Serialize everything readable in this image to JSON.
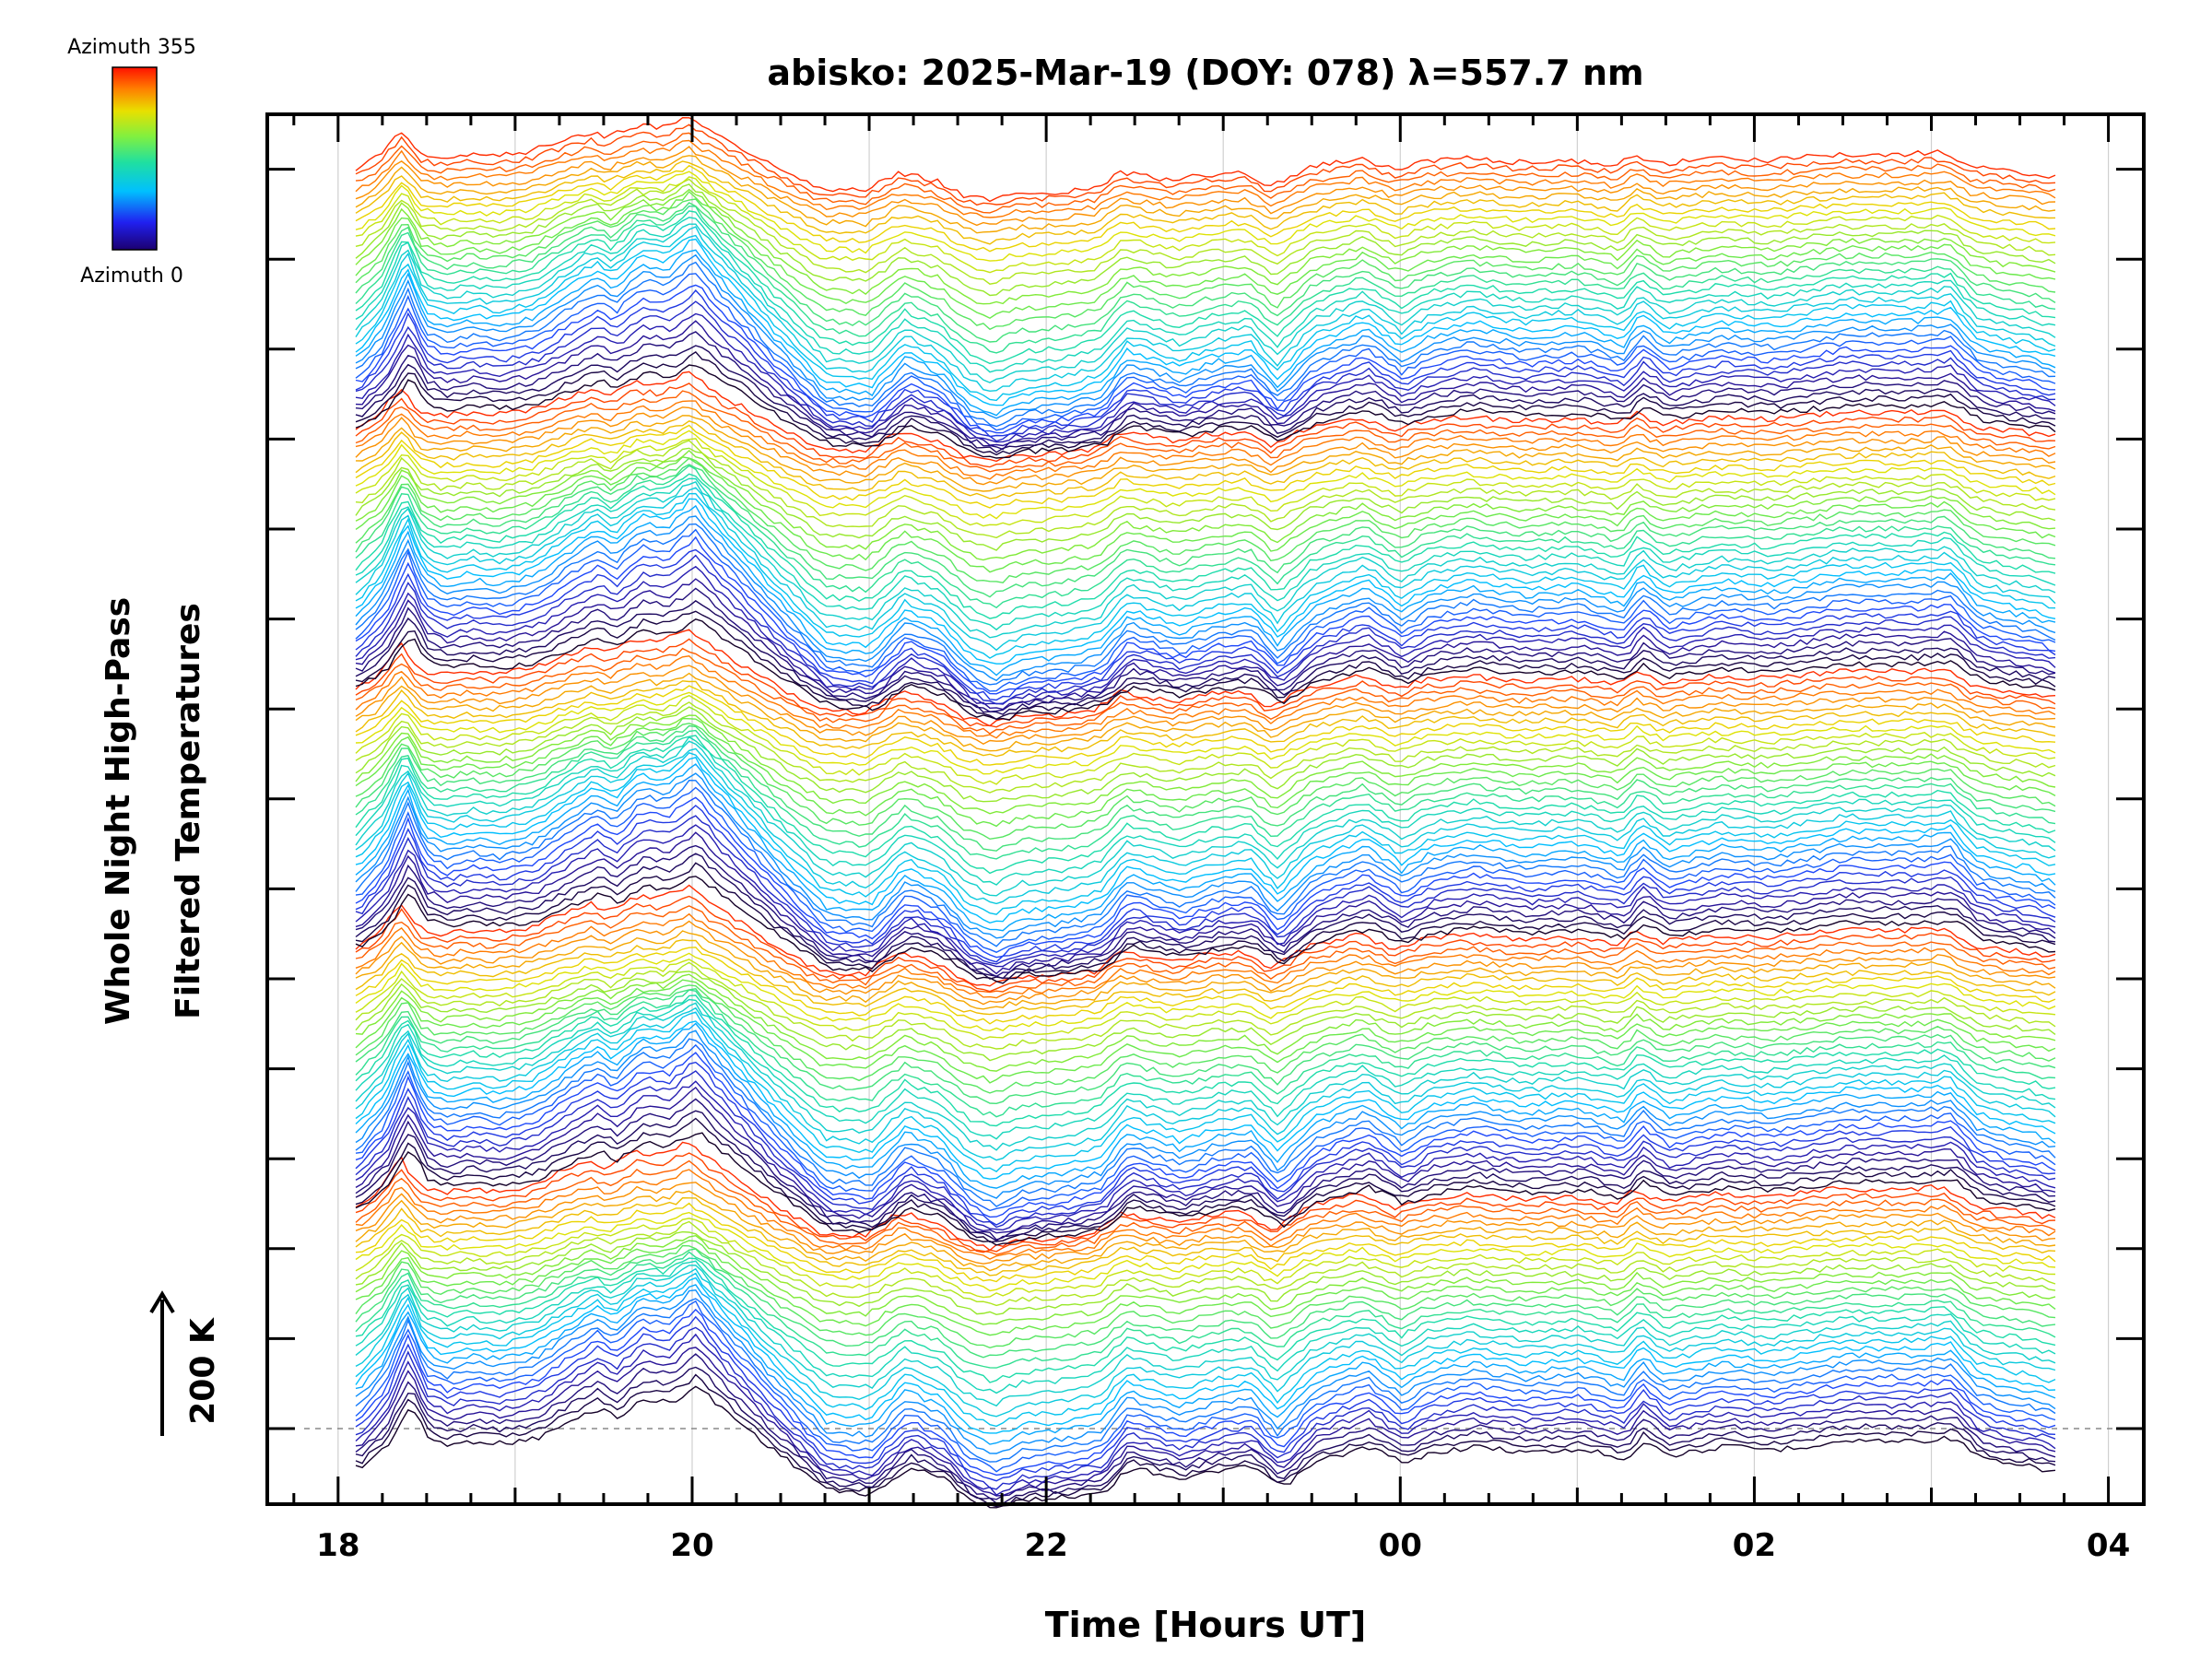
{
  "chart_data": {
    "type": "line",
    "title": "abisko: 2025-Mar-19 (DOY: 078) λ=557.7 nm",
    "xlabel": "Time [Hours UT]",
    "ylabel_line1": "Whole Night High-Pass",
    "ylabel_line2": "Filtered Temperatures",
    "x_tick_labels": [
      "18",
      "20",
      "22",
      "00",
      "02",
      "04"
    ],
    "x_ticks_hours": [
      18,
      20,
      22,
      24,
      26,
      28
    ],
    "xlim_hours": [
      17.6,
      28.2
    ],
    "data_x_range_hours": [
      18.1,
      27.7
    ],
    "scale_bar_label": "200 K",
    "scale_bar_kelvin": 200,
    "legend": {
      "top_label": "Azimuth 355",
      "bottom_label": "Azimuth 0",
      "colormap": "rainbow",
      "azimuth_min": 0,
      "azimuth_max": 355
    },
    "series_count": 180,
    "grid": "vertical dotted lines at each hour",
    "baseline": "dashed horizontal line at bottom series offset",
    "key_time_features_hours": [
      {
        "t": 18.35,
        "feature": "sharp peak"
      },
      {
        "t": 19.5,
        "feature": "rising oscillations"
      },
      {
        "t": 20.0,
        "feature": "maximum"
      },
      {
        "t": 20.5,
        "feature": "steep decline"
      },
      {
        "t": 21.4,
        "feature": "oscillation"
      },
      {
        "t": 21.95,
        "feature": "minimum"
      },
      {
        "t": 22.4,
        "feature": "step increase"
      },
      {
        "t": 23.3,
        "feature": "dip"
      },
      {
        "t": 24.0,
        "feature": "dip"
      },
      {
        "t": 25.3,
        "feature": "spike"
      },
      {
        "t": 27.0,
        "feature": "broad hump"
      },
      {
        "t": 27.2,
        "feature": "drop"
      }
    ]
  }
}
